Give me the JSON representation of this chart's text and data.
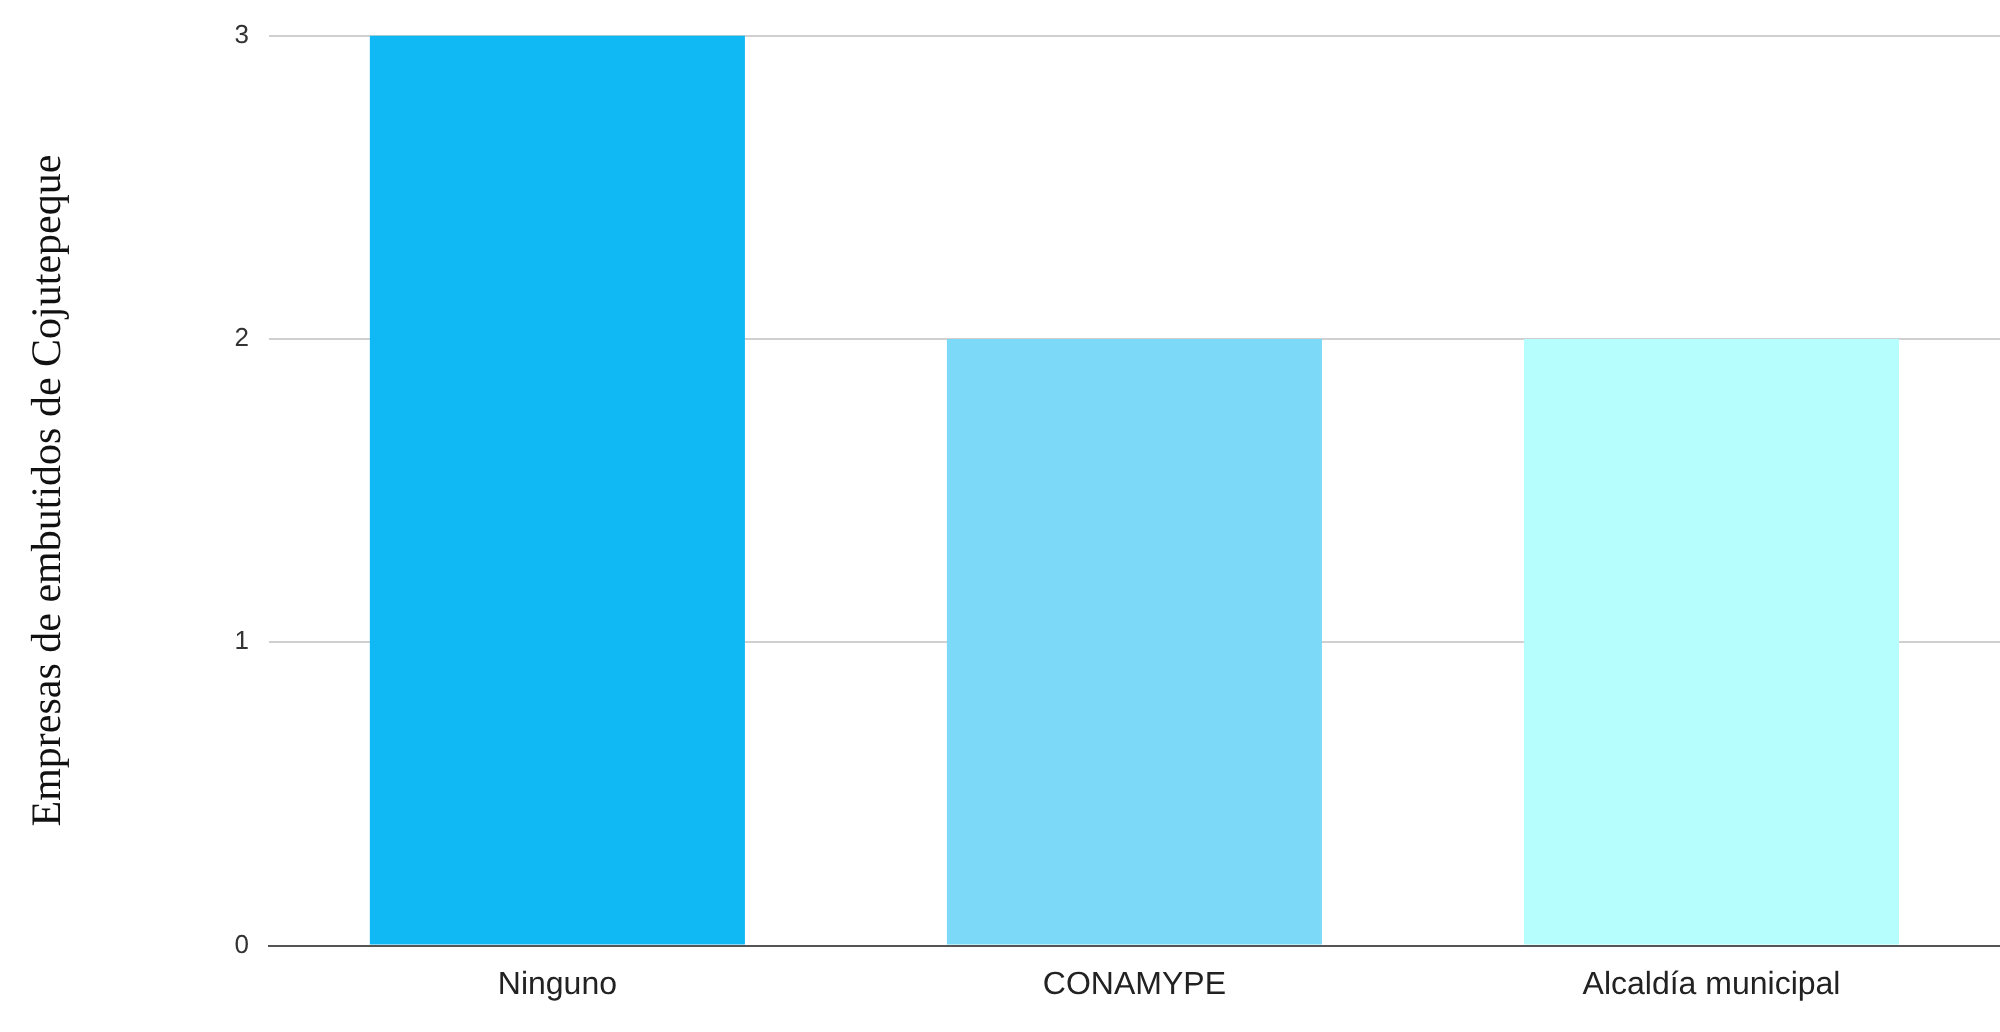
{
  "chart_data": {
    "type": "bar",
    "ylabel": "Empresas de embutidos de Cojutepeque",
    "categories": [
      "Ninguno",
      "CONAMYPE",
      "Alcaldía municipal"
    ],
    "values": [
      3,
      2,
      2
    ],
    "colors": [
      "#10b8f4",
      "#7dd9f8",
      "#b6fefd"
    ],
    "ylim": [
      0,
      3
    ],
    "yticks": [
      0,
      1,
      2,
      3
    ],
    "grid": "y",
    "legend": false
  }
}
